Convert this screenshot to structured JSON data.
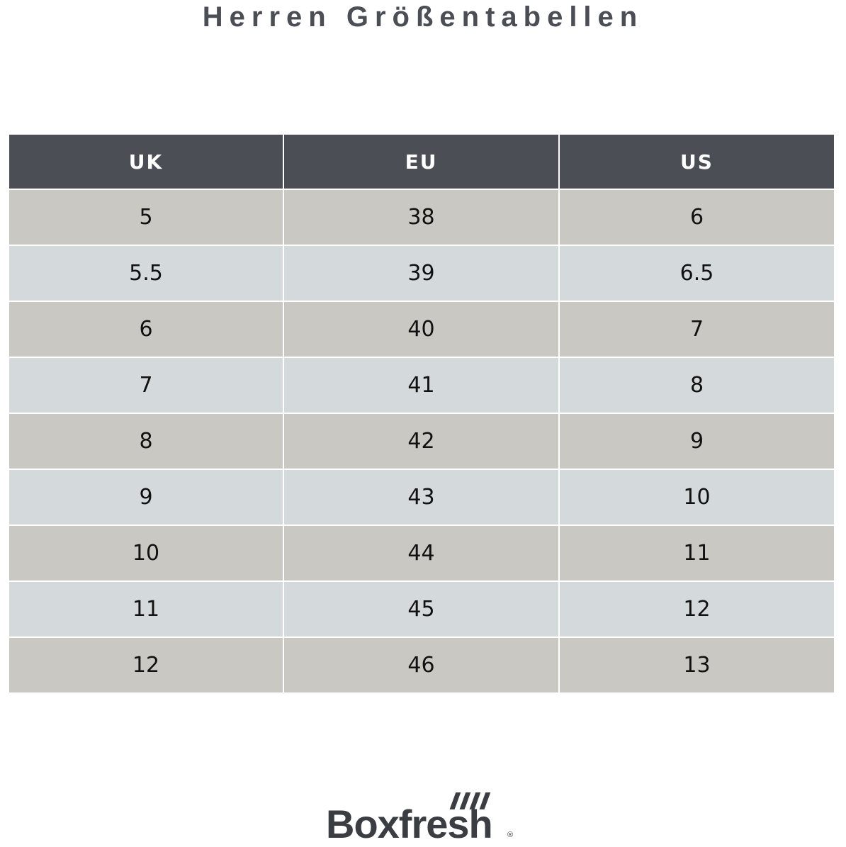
{
  "header": {
    "title": "Herren Größentabellen"
  },
  "table": {
    "columns": [
      "UK",
      "EU",
      "US"
    ],
    "rows": [
      [
        "5",
        "38",
        "6"
      ],
      [
        "5.5",
        "39",
        "6.5"
      ],
      [
        "6",
        "40",
        "7"
      ],
      [
        "7",
        "41",
        "8"
      ],
      [
        "8",
        "42",
        "9"
      ],
      [
        "9",
        "43",
        "10"
      ],
      [
        "10",
        "44",
        "11"
      ],
      [
        "11",
        "45",
        "12"
      ],
      [
        "12",
        "46",
        "13"
      ]
    ]
  },
  "logo": {
    "name": "Boxfresh",
    "mark": "®"
  }
}
